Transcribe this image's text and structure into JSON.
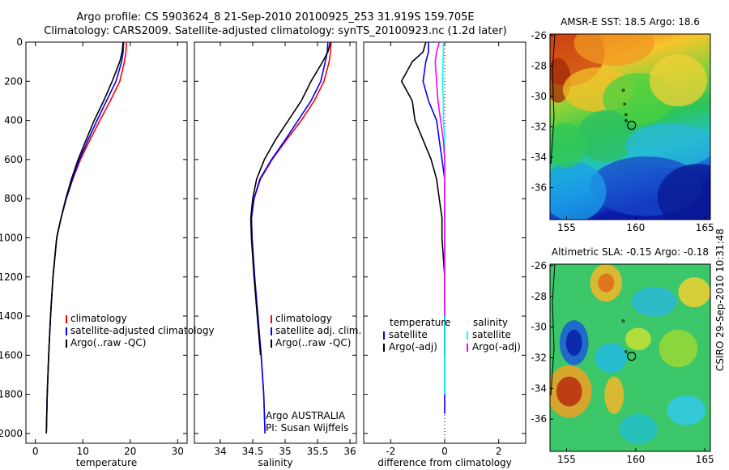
{
  "header": {
    "title_line1": "Argo profile: CS 5903624_8 21-Sep-2010 20100925_253 31.919S 159.705E",
    "title_line2": "Climatology: CARS2009. Satellite-adjusted climatology: synTS_20100923.nc (1.2d later)"
  },
  "credit": "CSIRO 29-Sep-2010 10:31:48",
  "colors": {
    "climatology": "#ff0000",
    "satellite": "#0000ff",
    "argo": "#000000",
    "sat_diff": "#00ffff",
    "argo_adj": "#ff00ff"
  },
  "chart_data": [
    {
      "type": "line",
      "xlabel": "temperature",
      "ylabel": "",
      "xlim": [
        -2,
        32
      ],
      "ylim": [
        2050,
        0
      ],
      "xticks": [
        0,
        10,
        20,
        30
      ],
      "yticks": [
        0,
        200,
        400,
        600,
        800,
        1000,
        1200,
        1400,
        1600,
        1800,
        2000
      ],
      "legend": [
        "climatology",
        "satellite-adjusted climatology",
        "Argo(..raw -QC)"
      ],
      "legend_position": "lower-left",
      "series": [
        {
          "name": "climatology",
          "color": "#ff0000",
          "x": [
            19.2,
            19.1,
            18.8,
            17.8,
            15.8,
            13.6,
            11.5,
            9.5,
            7.9,
            6.5,
            5.4,
            4.5,
            3.7,
            3.2,
            2.8,
            2.5,
            2.3
          ],
          "y": [
            0,
            50,
            100,
            200,
            300,
            400,
            500,
            600,
            700,
            800,
            900,
            1000,
            1200,
            1400,
            1600,
            1800,
            2000
          ]
        },
        {
          "name": "satellite-adjusted climatology",
          "color": "#0000ff",
          "x": [
            18.6,
            18.5,
            18.2,
            17.0,
            15.0,
            13.0,
            11.1,
            9.3,
            7.8,
            6.5,
            5.4,
            4.5,
            3.7,
            3.2,
            2.8,
            2.5,
            2.3
          ],
          "y": [
            0,
            50,
            100,
            200,
            300,
            400,
            500,
            600,
            700,
            800,
            900,
            1000,
            1200,
            1400,
            1600,
            1800,
            2000
          ]
        },
        {
          "name": "Argo(..raw -QC)",
          "color": "#000000",
          "x": [
            18.5,
            18.3,
            17.8,
            16.2,
            14.4,
            12.4,
            10.7,
            9.0,
            7.6,
            6.4,
            5.4,
            4.5,
            3.7,
            3.2,
            2.8,
            2.5,
            2.3
          ],
          "y": [
            0,
            50,
            100,
            200,
            300,
            400,
            500,
            600,
            700,
            800,
            900,
            1000,
            1200,
            1400,
            1600,
            1800,
            2000
          ]
        }
      ]
    },
    {
      "type": "line",
      "xlabel": "salinity",
      "ylabel": "",
      "xlim": [
        33.6,
        36.1
      ],
      "ylim": [
        2050,
        0
      ],
      "xticks": [
        34,
        34.5,
        35,
        35.5,
        36
      ],
      "yticks": [],
      "legend": [
        "climatology",
        "satellite adj. clim.",
        "Argo(..raw -QC)"
      ],
      "legend_position": "lower-right",
      "annotation": [
        "Argo AUSTRALIA",
        "PI: Susan Wijffels"
      ],
      "series": [
        {
          "name": "climatology",
          "color": "#ff0000",
          "x": [
            35.71,
            35.7,
            35.68,
            35.6,
            35.45,
            35.25,
            35.02,
            34.8,
            34.62,
            34.52,
            34.48,
            34.49,
            34.53,
            34.58,
            34.63,
            34.67,
            34.69
          ],
          "y": [
            0,
            50,
            100,
            200,
            300,
            400,
            500,
            600,
            700,
            800,
            900,
            1000,
            1200,
            1400,
            1600,
            1800,
            2000
          ]
        },
        {
          "name": "satellite adj. clim.",
          "color": "#0000ff",
          "x": [
            35.66,
            35.65,
            35.62,
            35.55,
            35.4,
            35.2,
            35.0,
            34.79,
            34.61,
            34.52,
            34.48,
            34.49,
            34.53,
            34.58,
            34.63,
            34.67,
            34.69
          ],
          "y": [
            0,
            50,
            100,
            200,
            300,
            400,
            500,
            600,
            700,
            800,
            900,
            1000,
            1200,
            1400,
            1600,
            1800,
            2000
          ]
        },
        {
          "name": "Argo(..raw -QC)",
          "color": "#000000",
          "x": [
            35.7,
            35.66,
            35.58,
            35.4,
            35.25,
            35.05,
            34.85,
            34.68,
            34.56,
            34.5,
            34.47,
            34.48,
            34.52,
            34.57,
            34.62
          ],
          "y": [
            0,
            50,
            100,
            200,
            300,
            400,
            500,
            600,
            700,
            800,
            900,
            1000,
            1200,
            1400,
            1600
          ]
        }
      ]
    },
    {
      "type": "line",
      "xlabel": "difference from climatology",
      "ylabel": "",
      "xlim": [
        -3,
        3
      ],
      "ylim": [
        2050,
        0
      ],
      "xticks": [
        -2,
        0,
        2
      ],
      "yticks": [],
      "legend_groups": [
        {
          "heading": "temperature",
          "entries": [
            "satellite",
            "Argo(-adj)"
          ]
        },
        {
          "heading": "salinity",
          "entries": [
            "satellite",
            "Argo(-adj)"
          ]
        }
      ],
      "legend_position": "lower-center",
      "series": [
        {
          "name": "satellite",
          "group": "temperature",
          "color": "#0000ff",
          "x": [
            -0.6,
            -0.6,
            -0.7,
            -0.8,
            -0.6,
            -0.3,
            -0.2,
            -0.1,
            0.0,
            0.0,
            0.0,
            0.0,
            0.0,
            0.0,
            0.0,
            0.0
          ],
          "y": [
            0,
            50,
            100,
            200,
            300,
            400,
            500,
            600,
            700,
            800,
            1000,
            1200,
            1400,
            1600,
            1800,
            1900
          ]
        },
        {
          "name": "Argo(-adj)",
          "group": "temperature",
          "color": "#000000",
          "x": [
            -0.7,
            -0.8,
            -1.2,
            -1.6,
            -1.2,
            -1.1,
            -0.8,
            -0.5,
            -0.3,
            -0.2,
            -0.1,
            -0.1,
            0.0,
            0.0,
            0.0,
            0.0
          ],
          "y": [
            0,
            50,
            100,
            200,
            300,
            400,
            500,
            600,
            700,
            800,
            900,
            1000,
            1200,
            1400,
            1500,
            1600
          ]
        },
        {
          "name": "satellite",
          "group": "salinity",
          "color": "#00ffff",
          "x": [
            -0.05,
            -0.05,
            -0.06,
            -0.08,
            -0.05,
            -0.05,
            0.0,
            0.0,
            0.0,
            0.0,
            0.0,
            0.0,
            0.0,
            0.0
          ],
          "y": [
            0,
            50,
            100,
            200,
            300,
            400,
            500,
            600,
            800,
            1000,
            1200,
            1400,
            1600,
            1800
          ]
        },
        {
          "name": "Argo(-adj)",
          "group": "salinity",
          "color": "#ff00ff",
          "x": [
            -0.2,
            -0.3,
            -0.35,
            -0.3,
            -0.25,
            -0.15,
            -0.05,
            0.0,
            0.0,
            0.0,
            0.0,
            0.0
          ],
          "y": [
            0,
            50,
            100,
            200,
            300,
            400,
            500,
            600,
            800,
            1000,
            1200,
            1400
          ]
        }
      ]
    },
    {
      "type": "heatmap",
      "title": "AMSR-E SST: 18.5  Argo: 18.6",
      "xlim": [
        153.8,
        165.4
      ],
      "ylim": [
        -38.1,
        -25.9
      ],
      "xticks": [
        155,
        160,
        165
      ],
      "yticks": [
        -26,
        -28,
        -30,
        -32,
        -34,
        -36
      ],
      "markers": [
        {
          "lon": 159.7,
          "lat": -31.9
        }
      ],
      "track": [
        {
          "lon": 159.1,
          "lat": -29.6
        },
        {
          "lon": 159.2,
          "lat": -30.5
        },
        {
          "lon": 159.3,
          "lat": -31.2
        },
        {
          "lon": 159.3,
          "lat": -31.6
        }
      ]
    },
    {
      "type": "heatmap",
      "title": "Altimetric SLA: -0.15  Argo: -0.18",
      "xlim": [
        153.8,
        165.4
      ],
      "ylim": [
        -38.1,
        -25.9
      ],
      "xticks": [
        155,
        160,
        165
      ],
      "yticks": [
        -26,
        -28,
        -30,
        -32,
        -34,
        -36
      ],
      "markers": [
        {
          "lon": 159.7,
          "lat": -31.9
        }
      ],
      "track": [
        {
          "lon": 159.1,
          "lat": -29.6
        },
        {
          "lon": 159.3,
          "lat": -31.6
        }
      ]
    }
  ]
}
